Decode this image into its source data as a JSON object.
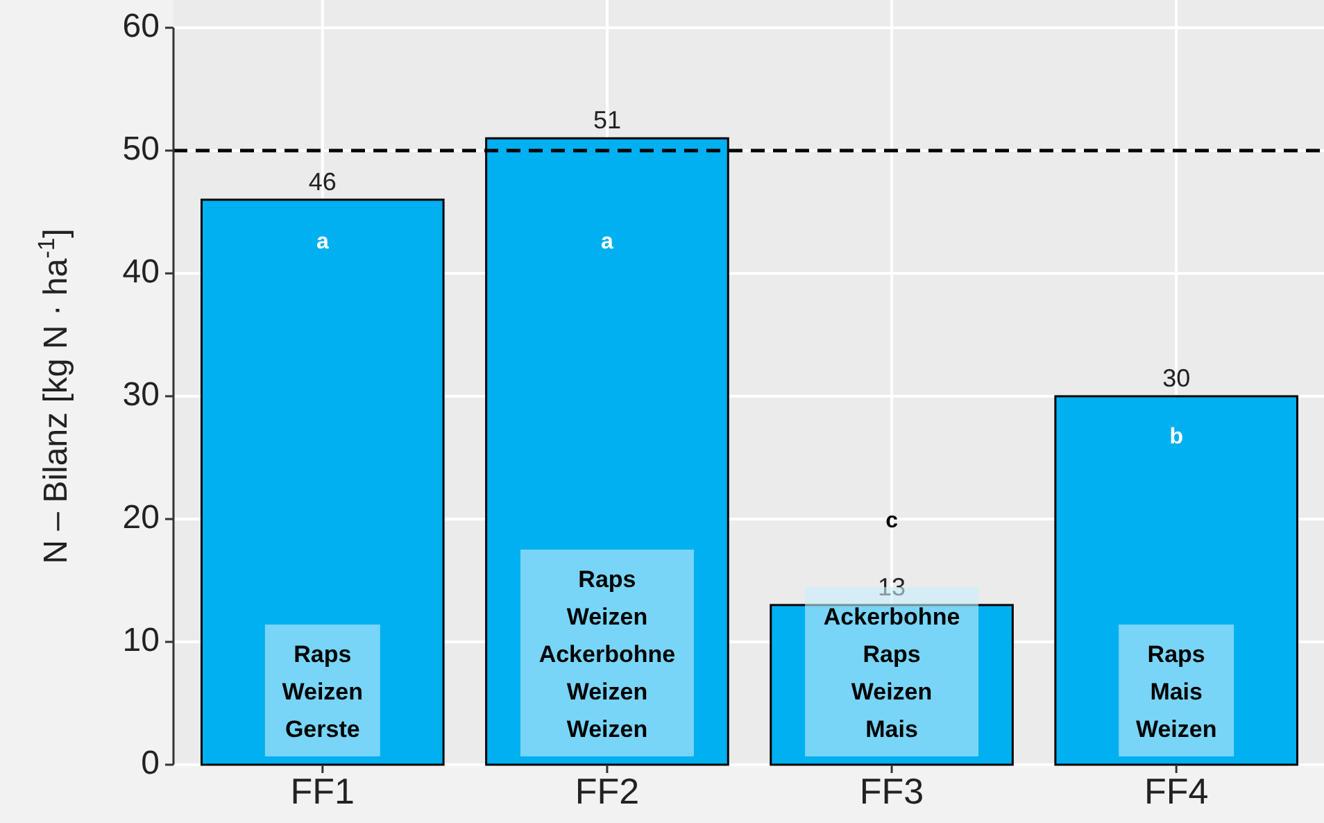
{
  "chart_data": {
    "type": "bar",
    "ylabel": "N – Bilanz [kg N · ha$^{-1}$]",
    "categories": [
      "FF1",
      "FF2",
      "FF3",
      "FF4"
    ],
    "values": [
      46,
      51,
      13,
      30
    ],
    "color": "#00b0f0",
    "data_labels": true,
    "ylim": [
      0,
      60
    ],
    "yticks": [
      0,
      10,
      20,
      30,
      40,
      50,
      60
    ],
    "grid": true,
    "ref_lines": [
      {
        "axis": "y",
        "value": 50,
        "line_style": "dashed",
        "color": "#000000"
      }
    ],
    "annotations": [
      "a",
      "a",
      "c",
      "b",
      "Raps\nWeizen\nGerste",
      "Raps\nWeizen\nAckerbohne\nWeizen\nWeizen",
      "Ackerbohne\nRaps\nWeizen\nMais",
      "Raps\nMais\nWeizen"
    ]
  }
}
